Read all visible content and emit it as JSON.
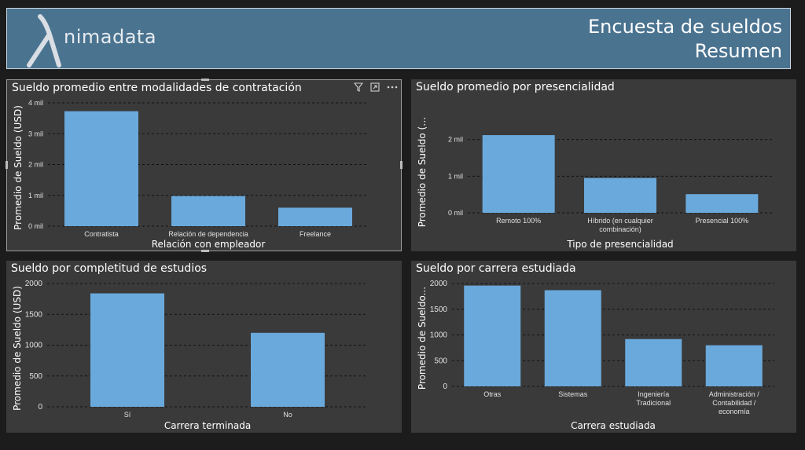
{
  "header": {
    "logo_text": "nimadata",
    "title": "Encuesta de sueldos",
    "subtitle": "Resumen"
  },
  "toolbar": {
    "filter_icon": "filter-icon",
    "focus_icon": "focus-mode-icon",
    "more_icon": "more-options-icon"
  },
  "chart_data": [
    {
      "type": "bar",
      "title": "Sueldo promedio entre modalidades de contratación",
      "xlabel": "Relación con empleador",
      "ylabel": "Promedio de Sueldo (USD)",
      "categories": [
        "Contratista",
        "Relación de dependencia",
        "Freelance"
      ],
      "category_lines": [
        [
          "Contratista"
        ],
        [
          "Relación de dependencia"
        ],
        [
          "Freelance"
        ]
      ],
      "values": [
        3730,
        980,
        600
      ],
      "ylim": [
        0,
        4000
      ],
      "yticks": [
        0,
        1000,
        2000,
        3000,
        4000
      ],
      "ytick_labels": [
        "0 mil",
        "1 mil",
        "2 mil",
        "3 mil",
        "4 mil"
      ],
      "grid": true,
      "color": "#6aa9dc"
    },
    {
      "type": "bar",
      "title": "Sueldo promedio por presencialidad",
      "xlabel": "Tipo de presencialidad",
      "ylabel": "Promedio de Sueldo (…",
      "categories": [
        "Remoto 100%",
        "Híbrido (en cualquier combinación)",
        "Presencial 100%"
      ],
      "category_lines": [
        [
          "Remoto 100%"
        ],
        [
          "Híbrido (en cualquier",
          "combinación)"
        ],
        [
          "Presencial 100%"
        ]
      ],
      "values": [
        2120,
        950,
        510
      ],
      "ylim": [
        0,
        2400
      ],
      "yticks": [
        0,
        1000,
        2000
      ],
      "ytick_labels": [
        "0 mil",
        "1 mil",
        "2 mil"
      ],
      "grid": true,
      "color": "#6aa9dc"
    },
    {
      "type": "bar",
      "title": "Sueldo por completitud de estudios",
      "xlabel": "Carrera terminada",
      "ylabel": "Promedio de Sueldo (USD)",
      "categories": [
        "Sí",
        "No"
      ],
      "category_lines": [
        [
          "Sí"
        ],
        [
          "No"
        ]
      ],
      "values": [
        1840,
        1200
      ],
      "ylim": [
        0,
        2000
      ],
      "yticks": [
        0,
        500,
        1000,
        1500,
        2000
      ],
      "ytick_labels": [
        "0",
        "500",
        "1000",
        "1500",
        "2000"
      ],
      "grid": true,
      "color": "#6aa9dc"
    },
    {
      "type": "bar",
      "title": "Sueldo por carrera estudiada",
      "xlabel": "Carrera estudiada",
      "ylabel": "Promedio de Sueldo...",
      "categories": [
        "Otras",
        "Sistemas",
        "Ingeniería Tradicional",
        "Administración / Contabilidad / economía"
      ],
      "category_lines": [
        [
          "Otras"
        ],
        [
          "Sistemas"
        ],
        [
          "Ingeniería",
          "Tradicional"
        ],
        [
          "Administración /",
          "Contabilidad /",
          "economía"
        ]
      ],
      "values": [
        1960,
        1870,
        920,
        800
      ],
      "ylim": [
        0,
        2000
      ],
      "yticks": [
        0,
        500,
        1000,
        1500,
        2000
      ],
      "ytick_labels": [
        "0",
        "500",
        "1000",
        "1500",
        "2000"
      ],
      "grid": true,
      "color": "#6aa9dc"
    }
  ]
}
